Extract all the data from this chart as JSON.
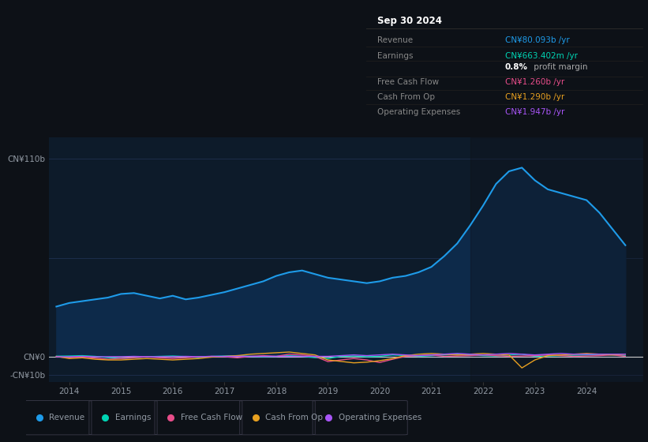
{
  "bg_color": "#0d1117",
  "plot_bg_color": "#0d1b2a",
  "grid_color": "#1e3050",
  "text_color": "#9199a3",
  "white_color": "#ffffff",
  "ylabel_110": "CN¥110b",
  "ylabel_0": "CN¥0",
  "ylabel_neg10": "-CN¥10b",
  "ylim": [
    -14,
    122
  ],
  "years_x": [
    2013.75,
    2014.0,
    2014.25,
    2014.5,
    2014.75,
    2015.0,
    2015.25,
    2015.5,
    2015.75,
    2016.0,
    2016.25,
    2016.5,
    2016.75,
    2017.0,
    2017.25,
    2017.5,
    2017.75,
    2018.0,
    2018.25,
    2018.5,
    2018.75,
    2019.0,
    2019.25,
    2019.5,
    2019.75,
    2020.0,
    2020.25,
    2020.5,
    2020.75,
    2021.0,
    2021.25,
    2021.5,
    2021.75,
    2022.0,
    2022.25,
    2022.5,
    2022.75,
    2023.0,
    2023.25,
    2023.5,
    2023.75,
    2024.0,
    2024.25,
    2024.5,
    2024.75
  ],
  "revenue": [
    28,
    30,
    31,
    32,
    33,
    35,
    35.5,
    34,
    32.5,
    34,
    32,
    33,
    34.5,
    36,
    38,
    40,
    42,
    45,
    47,
    48,
    46,
    44,
    43,
    42,
    41,
    42,
    44,
    45,
    47,
    50,
    56,
    63,
    73,
    84,
    96,
    103,
    105,
    98,
    93,
    91,
    89,
    87,
    80,
    71,
    62
  ],
  "earnings": [
    0.5,
    0.6,
    0.8,
    0.4,
    -0.3,
    -0.8,
    -0.4,
    0.2,
    0.4,
    0.6,
    0.3,
    -0.3,
    0.4,
    0.6,
    0.8,
    0.4,
    0.2,
    0.4,
    0.8,
    0.4,
    -0.3,
    -0.8,
    0.4,
    0.6,
    0.2,
    0.4,
    1.2,
    0.8,
    0.4,
    0.8,
    1.2,
    1.6,
    1.2,
    0.8,
    0.6,
    1.2,
    1.6,
    0.4,
    0.6,
    0.8,
    1.0,
    1.2,
    1.5,
    1.2,
    0.7
  ],
  "free_cash_flow": [
    0.2,
    -0.4,
    0.2,
    -0.6,
    -1.2,
    -0.8,
    -0.4,
    0.2,
    -0.4,
    -0.8,
    -0.4,
    0.2,
    0.4,
    0.2,
    -0.4,
    0.4,
    0.8,
    0.4,
    1.6,
    1.2,
    0.4,
    -2.5,
    -1.6,
    -0.8,
    -1.6,
    -3.0,
    -1.2,
    0.4,
    0.8,
    1.2,
    0.4,
    0.6,
    0.8,
    1.2,
    0.8,
    0.4,
    0.6,
    0.8,
    1.2,
    0.8,
    0.4,
    0.6,
    0.8,
    1.2,
    0.4
  ],
  "cash_from_op": [
    0.4,
    -0.8,
    -0.4,
    -1.2,
    -1.6,
    -1.6,
    -1.2,
    -0.8,
    -1.2,
    -1.6,
    -1.2,
    -0.8,
    0.0,
    0.4,
    0.8,
    1.6,
    2.0,
    2.4,
    2.8,
    2.0,
    1.2,
    -1.6,
    -2.4,
    -3.2,
    -2.8,
    -2.0,
    -0.8,
    0.8,
    1.6,
    2.0,
    1.6,
    1.2,
    1.6,
    2.0,
    1.6,
    1.2,
    -6.0,
    -1.6,
    0.8,
    1.2,
    1.6,
    2.0,
    1.6,
    1.2,
    1.6
  ],
  "operating_expenses": [
    0.2,
    0.2,
    0.4,
    0.2,
    0.2,
    0.2,
    0.4,
    0.2,
    0.2,
    0.2,
    0.4,
    0.2,
    0.4,
    0.4,
    0.4,
    0.4,
    0.4,
    0.4,
    0.4,
    0.4,
    0.4,
    0.4,
    0.8,
    1.2,
    0.8,
    1.2,
    1.6,
    1.2,
    0.8,
    1.2,
    1.6,
    2.0,
    1.6,
    1.2,
    1.6,
    2.0,
    1.6,
    1.2,
    1.6,
    2.0,
    1.6,
    1.6,
    1.6,
    1.6,
    1.6
  ],
  "revenue_color": "#1e9be9",
  "revenue_fill": "#0d2a4a",
  "earnings_color": "#00d4b4",
  "free_cash_flow_color": "#e84d8a",
  "cash_from_op_color": "#e8a020",
  "operating_expenses_color": "#a855f7",
  "legend_items": [
    "Revenue",
    "Earnings",
    "Free Cash Flow",
    "Cash From Op",
    "Operating Expenses"
  ],
  "legend_colors": [
    "#1e9be9",
    "#00d4b4",
    "#e84d8a",
    "#e8a020",
    "#a855f7"
  ],
  "xtick_years": [
    2014,
    2015,
    2016,
    2017,
    2018,
    2019,
    2020,
    2021,
    2022,
    2023,
    2024
  ],
  "tooltip_title": "Sep 30 2024",
  "tooltip_label_color": "#888888",
  "tooltip_rows": [
    {
      "label": "Revenue",
      "value": "CN¥80.093b /yr",
      "value_color": "#1e9be9"
    },
    {
      "label": "Earnings",
      "value": "CN¥663.402m /yr",
      "value_color": "#00d4b4"
    },
    {
      "label": "",
      "value_bold": "0.8%",
      "value_rest": " profit margin",
      "value_color": "#ffffff"
    },
    {
      "label": "Free Cash Flow",
      "value": "CN¥1.260b /yr",
      "value_color": "#e84d8a"
    },
    {
      "label": "Cash From Op",
      "value": "CN¥1.290b /yr",
      "value_color": "#e8a020"
    },
    {
      "label": "Operating Expenses",
      "value": "CN¥1.947b /yr",
      "value_color": "#a855f7"
    }
  ]
}
